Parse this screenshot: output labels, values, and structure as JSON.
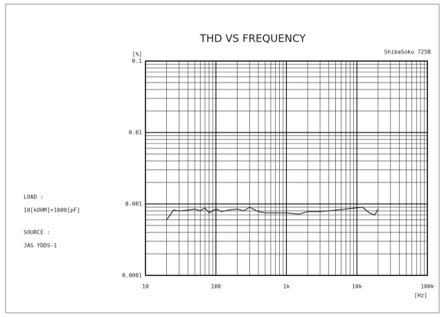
{
  "chart_data": {
    "type": "line",
    "title": "THD VS FREQUENCY",
    "annotations": [
      "ShibaSoku 725B",
      "LOAD :",
      "10[kOHM]+1000[pF]",
      "SOURCE :",
      "JAS YDDS-1"
    ],
    "y_label": "[%]",
    "x_label": "[Hz]",
    "x_log": true,
    "y_log": true,
    "grid": true,
    "minor_grid": true,
    "xlim": [
      10,
      100000
    ],
    "ylim": [
      0.0001,
      0.1
    ],
    "xticks": [
      10,
      100,
      {
        "value": 1000,
        "label": "1k"
      },
      {
        "value": 10000,
        "label": "10k"
      },
      {
        "value": 100000,
        "label": "100k"
      }
    ],
    "yticks": [
      0.1,
      0.01,
      0.001,
      0.0001
    ],
    "x": [
      20,
      25,
      30,
      40,
      50,
      60,
      70,
      80,
      100,
      120,
      150,
      200,
      250,
      300,
      400,
      500,
      700,
      1000,
      1500,
      2000,
      3000,
      4000,
      5000,
      7000,
      10000,
      12000,
      15000,
      18000,
      20000
    ],
    "series": [
      {
        "color": "#333333",
        "values": [
          0.0006,
          0.00082,
          0.0008,
          0.00082,
          0.00085,
          0.0008,
          0.00088,
          0.00075,
          0.00085,
          0.00078,
          0.00082,
          0.00085,
          0.0008,
          0.0009,
          0.00078,
          0.00075,
          0.00075,
          0.00075,
          0.00072,
          0.00078,
          0.00078,
          0.0008,
          0.00082,
          0.00085,
          0.00088,
          0.0009,
          0.00075,
          0.0007,
          0.00085
        ]
      }
    ]
  }
}
